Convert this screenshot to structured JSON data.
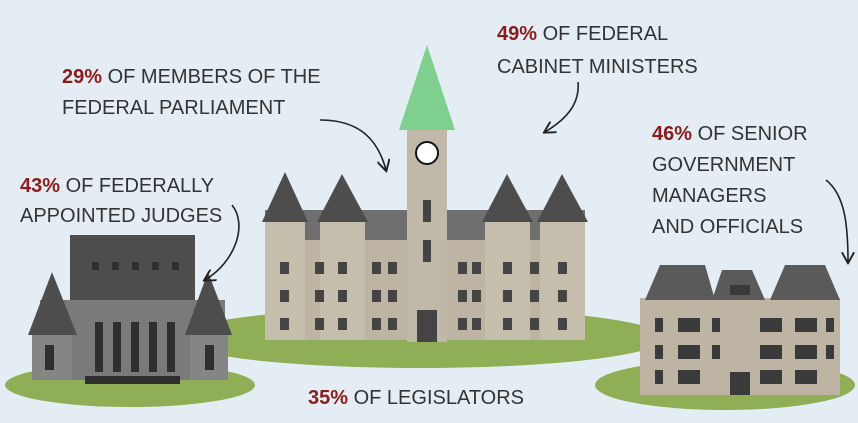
{
  "callouts": [
    {
      "pct": "29%",
      "lines": [
        "OF MEMBERS OF THE",
        "FEDERAL PARLIAMENT"
      ]
    },
    {
      "pct": "49%",
      "lines": [
        "OF FEDERAL",
        "CABINET MINISTERS"
      ]
    },
    {
      "pct": "46%",
      "lines": [
        "OF SENIOR",
        "GOVERNMENT",
        "MANAGERS",
        "AND OFFICIALS"
      ]
    },
    {
      "pct": "43%",
      "lines": [
        "OF FEDERALLY",
        "APPOINTED JUDGES"
      ]
    },
    {
      "pct": "35%",
      "lines": [
        "OF LEGISLATORS"
      ]
    }
  ]
}
